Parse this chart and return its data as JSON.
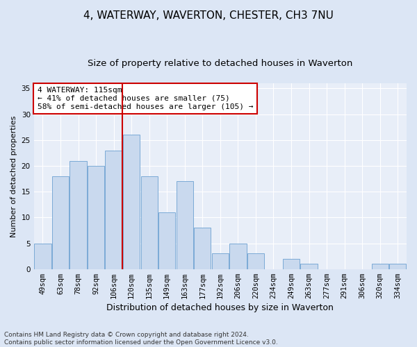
{
  "title1": "4, WATERWAY, WAVERTON, CHESTER, CH3 7NU",
  "title2": "Size of property relative to detached houses in Waverton",
  "xlabel": "Distribution of detached houses by size in Waverton",
  "ylabel": "Number of detached properties",
  "categories": [
    "49sqm",
    "63sqm",
    "78sqm",
    "92sqm",
    "106sqm",
    "120sqm",
    "135sqm",
    "149sqm",
    "163sqm",
    "177sqm",
    "192sqm",
    "206sqm",
    "220sqm",
    "234sqm",
    "249sqm",
    "263sqm",
    "277sqm",
    "291sqm",
    "306sqm",
    "320sqm",
    "334sqm"
  ],
  "values": [
    5,
    18,
    21,
    20,
    23,
    26,
    18,
    11,
    17,
    8,
    3,
    5,
    3,
    0,
    2,
    1,
    0,
    0,
    0,
    1,
    1
  ],
  "bar_color": "#c9d9ee",
  "bar_edge_color": "#7baad6",
  "vline_color": "#cc0000",
  "vline_x_index": 4.5,
  "annotation_text": "4 WATERWAY: 115sqm\n← 41% of detached houses are smaller (75)\n58% of semi-detached houses are larger (105) →",
  "annotation_box_facecolor": "#ffffff",
  "annotation_box_edgecolor": "#cc0000",
  "ylim": [
    0,
    36
  ],
  "yticks": [
    0,
    5,
    10,
    15,
    20,
    25,
    30,
    35
  ],
  "bg_color": "#dce6f5",
  "plot_bg_color": "#e8eef8",
  "grid_color": "#ffffff",
  "footnote": "Contains HM Land Registry data © Crown copyright and database right 2024.\nContains public sector information licensed under the Open Government Licence v3.0.",
  "title1_fontsize": 11,
  "title2_fontsize": 9.5,
  "xlabel_fontsize": 9,
  "ylabel_fontsize": 8,
  "tick_fontsize": 7.5,
  "annotation_fontsize": 8,
  "footnote_fontsize": 6.5
}
